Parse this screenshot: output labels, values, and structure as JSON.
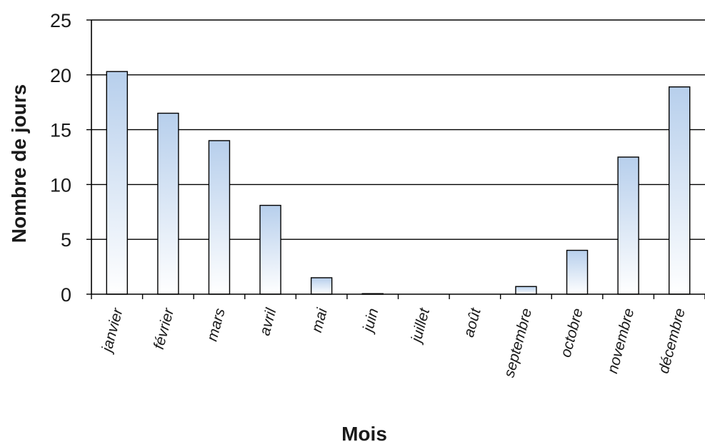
{
  "chart_data": {
    "type": "bar",
    "title": "",
    "xlabel": "Mois",
    "ylabel": "Nombre de jours",
    "ylim": [
      0,
      25
    ],
    "yticks": [
      0,
      5,
      10,
      15,
      20,
      25
    ],
    "grid": true,
    "categories": [
      "janvier",
      "février",
      "mars",
      "avril",
      "mai",
      "juin",
      "juillet",
      "août",
      "septembre",
      "octobre",
      "novembre",
      "décembre"
    ],
    "values": [
      20.3,
      16.5,
      14.0,
      8.1,
      1.5,
      0.05,
      0.0,
      0.0,
      0.7,
      4.0,
      12.5,
      18.9
    ]
  },
  "colors": {
    "bar_top": "#b7cfec",
    "bar_bottom": "#ffffff",
    "bar_stroke": "#000000",
    "grid": "#000000",
    "axis": "#000000"
  }
}
